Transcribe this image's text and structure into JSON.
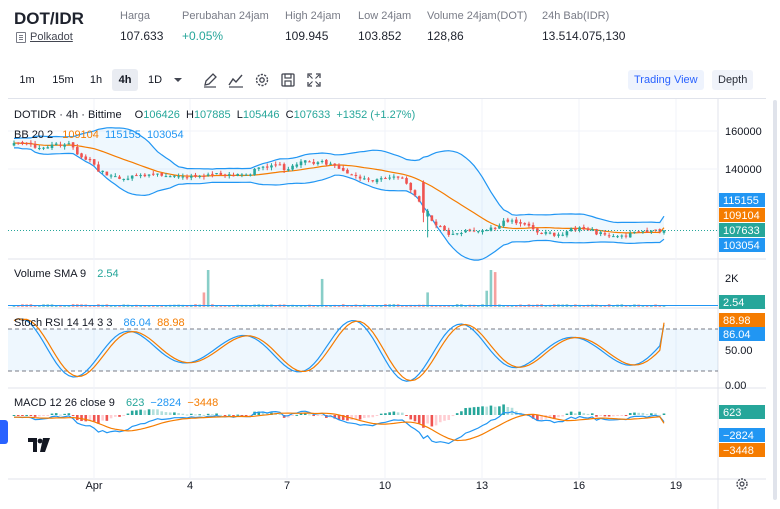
{
  "ticker": {
    "pair": "DOT/IDR",
    "name": "Polkadot",
    "stats": [
      {
        "label": "Harga",
        "value": "107.633",
        "positive": false
      },
      {
        "label": "Perubahan 24jam",
        "value": "+0.05%",
        "positive": true
      },
      {
        "label": "High 24jam",
        "value": "109.945",
        "positive": false
      },
      {
        "label": "Low 24jam",
        "value": "103.852",
        "positive": false
      },
      {
        "label": "Volume 24jam(DOT)",
        "value": "128,86",
        "positive": false
      },
      {
        "label": "24h Bab(IDR)",
        "value": "13.514.075,130",
        "positive": false
      }
    ]
  },
  "toolbar": {
    "timeframes": [
      "1m",
      "15m",
      "1h",
      "4h",
      "1D"
    ],
    "active_timeframe": "4h",
    "icons": [
      "chevron-down-icon",
      "draw-pen-icon",
      "indicators-icon",
      "settings-icon",
      "save-icon",
      "fullscreen-icon"
    ],
    "trading_view": "Trading View",
    "depth": "Depth"
  },
  "legend": {
    "main_title": "DOTIDR · 4h · Bittime",
    "ohlc_o_label": "O",
    "ohlc_o": "106426",
    "ohlc_h_label": "H",
    "ohlc_h": "107885",
    "ohlc_l_label": "L",
    "ohlc_l": "105446",
    "ohlc_c_label": "C",
    "ohlc_c": "107633",
    "change": "+1352 (+1.27%)",
    "bb_label": "BB 20 2",
    "bb_basis": "109104",
    "bb_upper": "115155",
    "bb_lower": "103054",
    "vol_label": "Volume SMA 9",
    "vol_value": "2.54",
    "stoch_label": "Stoch RSI 14 14 3 3",
    "stoch_k": "86.04",
    "stoch_d": "88.98",
    "macd_label": "MACD 12 26 close 9",
    "macd_hist": "623",
    "macd_line": "−2824",
    "macd_signal": "−3448"
  },
  "axis": {
    "price_ticks": [
      "160000",
      "140000"
    ],
    "price_labels": [
      {
        "text": "115155",
        "color": "#2196f3"
      },
      {
        "text": "109104",
        "color": "#f57c00"
      },
      {
        "text": "107633",
        "color": "#26a69a"
      },
      {
        "text": "103054",
        "color": "#2196f3"
      }
    ],
    "volume_tick": "2K",
    "volume_label": {
      "text": "2.54",
      "color": "#26a69a"
    },
    "stoch_ticks": [
      "50.00",
      "0.00"
    ],
    "stoch_labels": [
      {
        "text": "88.98",
        "color": "#f57c00"
      },
      {
        "text": "86.04",
        "color": "#2196f3"
      }
    ],
    "macd_labels": [
      {
        "text": "623",
        "color": "#26a69a"
      },
      {
        "text": "−2824",
        "color": "#2196f3"
      },
      {
        "text": "−3448",
        "color": "#f57c00"
      }
    ],
    "time_ticks": [
      "Apr",
      "4",
      "7",
      "10",
      "13",
      "16",
      "19"
    ]
  },
  "colors": {
    "up": "#26a69a",
    "down": "#ef5350",
    "bb": "#2196f3",
    "basis": "#f57c00",
    "accent": "#2962ff"
  },
  "chart_data": {
    "type": "candlestick",
    "interval": "4h",
    "x_ticks": [
      "Apr",
      "4",
      "7",
      "10",
      "13",
      "16",
      "19"
    ],
    "y_ticks": [
      160000,
      140000
    ],
    "last_close": 107633,
    "bollinger": {
      "basis": 109104,
      "upper": 115155,
      "lower": 103054
    },
    "volume_sma": 2.54,
    "stoch_rsi": {
      "k": 86.04,
      "d": 88.98,
      "ticks": [
        50,
        0
      ]
    },
    "macd": {
      "histogram": 623,
      "macd": -2824,
      "signal": -3448
    }
  }
}
